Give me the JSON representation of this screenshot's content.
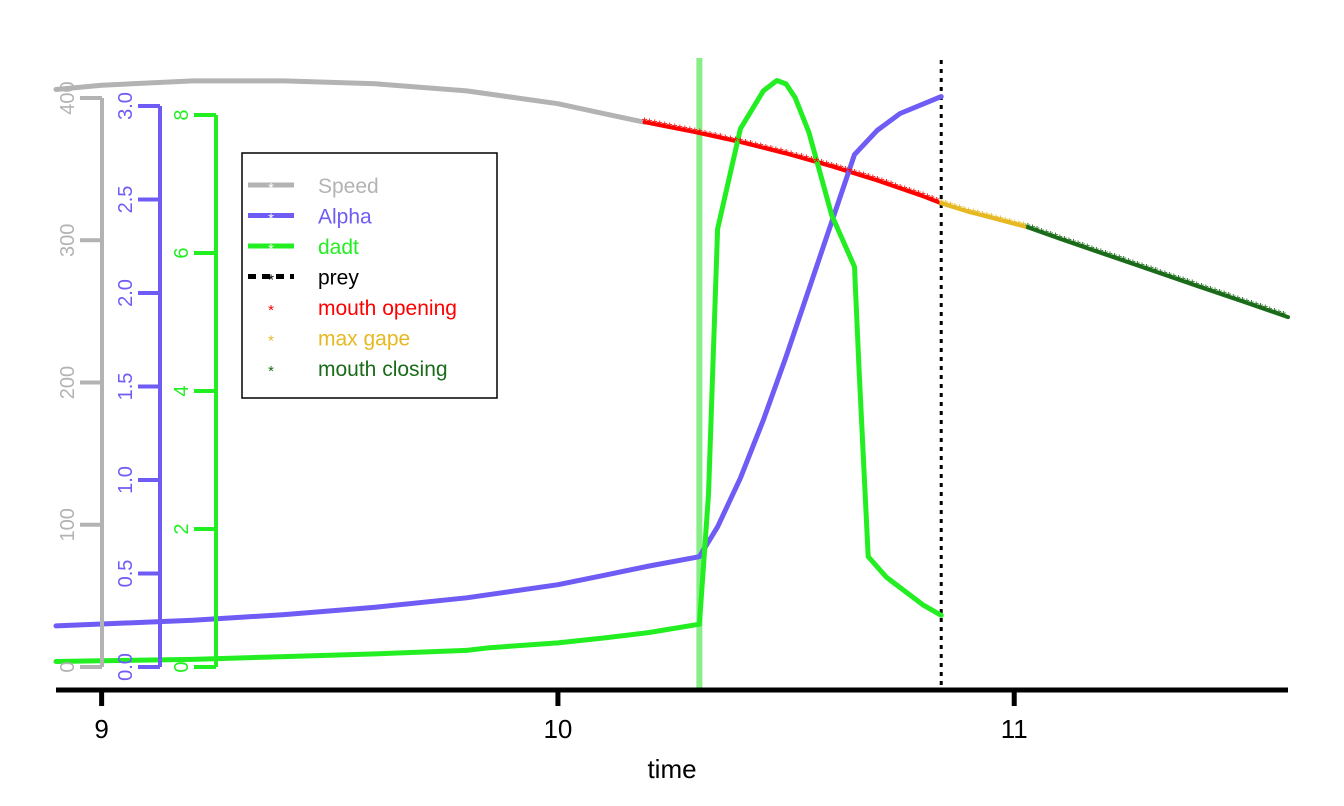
{
  "chart_data": {
    "type": "line",
    "title": "",
    "xlabel": "time",
    "xlim": [
      8.9,
      11.6
    ],
    "x_ticks": [
      "9",
      "10",
      "11"
    ],
    "axes": [
      {
        "name": "speed-axis",
        "color": "#b3b3b3",
        "ylim": [
          0,
          400
        ],
        "ticks": [
          "0",
          "100",
          "200",
          "300",
          "400"
        ]
      },
      {
        "name": "alpha-axis",
        "color": "#6e5cf5",
        "ylim": [
          0,
          3.0
        ],
        "ticks": [
          "0.0",
          "0.5",
          "1.0",
          "1.5",
          "2.0",
          "2.5",
          "3.0"
        ]
      },
      {
        "name": "dadt-axis",
        "color": "#22ee22",
        "ylim": [
          0,
          8
        ],
        "ticks": [
          "0",
          "2",
          "4",
          "6",
          "8"
        ]
      }
    ],
    "legend": {
      "position": "top-left",
      "entries": [
        {
          "label": "Speed",
          "color": "#b3b3b3",
          "style": "line"
        },
        {
          "label": "Alpha",
          "color": "#6e5cf5",
          "style": "line"
        },
        {
          "label": "dadt",
          "color": "#22ee22",
          "style": "line"
        },
        {
          "label": "prey",
          "color": "#000000",
          "style": "dashed"
        },
        {
          "label": "mouth opening",
          "color": "#ff0000",
          "style": "star"
        },
        {
          "label": "max gape",
          "color": "#e6b822",
          "style": "star"
        },
        {
          "label": "mouth closing",
          "color": "#1a6b1a",
          "style": "star"
        }
      ]
    },
    "series": [
      {
        "key": "speed",
        "axis": 0,
        "color": "#b3b3b3",
        "x": [
          8.9,
          9.0,
          9.2,
          9.4,
          9.6,
          9.8,
          10.0,
          10.1,
          10.19
        ],
        "y": [
          406,
          409,
          412,
          412,
          410,
          405,
          396,
          389,
          383
        ]
      },
      {
        "key": "opening",
        "axis": 0,
        "color": "#ff0000",
        "marker": "star",
        "x": [
          10.19,
          10.3,
          10.4,
          10.5,
          10.6,
          10.7,
          10.8,
          10.84
        ],
        "y": [
          383,
          376,
          369,
          361,
          352,
          342,
          331,
          326
        ]
      },
      {
        "key": "gape",
        "axis": 0,
        "color": "#e6b822",
        "marker": "star",
        "x": [
          10.84,
          10.9,
          10.96,
          11.03
        ],
        "y": [
          326,
          320,
          315,
          309
        ]
      },
      {
        "key": "closing",
        "axis": 0,
        "color": "#1a6b1a",
        "marker": "star",
        "x": [
          11.03,
          11.1,
          11.2,
          11.3,
          11.4,
          11.5,
          11.6
        ],
        "y": [
          309,
          301,
          290,
          279,
          268,
          257,
          246
        ]
      },
      {
        "key": "alpha",
        "axis": 1,
        "color": "#6e5cf5",
        "x": [
          8.9,
          9.0,
          9.2,
          9.4,
          9.6,
          9.8,
          10.0,
          10.1,
          10.2,
          10.31,
          10.35,
          10.4,
          10.45,
          10.5,
          10.55,
          10.6,
          10.65,
          10.7,
          10.75,
          10.84
        ],
        "y": [
          0.22,
          0.23,
          0.25,
          0.28,
          0.32,
          0.37,
          0.44,
          0.49,
          0.54,
          0.59,
          0.75,
          1.01,
          1.32,
          1.66,
          2.02,
          2.38,
          2.74,
          2.87,
          2.96,
          3.05
        ]
      },
      {
        "key": "dadt",
        "axis": 2,
        "color": "#22ee22",
        "x": [
          8.9,
          9.0,
          9.2,
          9.4,
          9.6,
          9.8,
          9.85,
          10.0,
          10.1,
          10.2,
          10.31,
          10.33,
          10.35,
          10.4,
          10.45,
          10.48,
          10.5,
          10.52,
          10.55,
          10.6,
          10.65,
          10.66,
          10.68,
          10.72,
          10.8,
          10.84
        ],
        "y": [
          0.08,
          0.09,
          0.11,
          0.15,
          0.19,
          0.24,
          0.28,
          0.35,
          0.42,
          0.5,
          0.62,
          2.5,
          6.35,
          7.8,
          8.35,
          8.5,
          8.45,
          8.25,
          7.75,
          6.55,
          5.8,
          4.3,
          1.6,
          1.3,
          0.9,
          0.75
        ]
      }
    ],
    "vlines": [
      {
        "key": "strike",
        "x": 10.31,
        "color": "#88ee88",
        "style": "solid"
      },
      {
        "key": "prey",
        "x": 10.84,
        "color": "#000000",
        "style": "dotted"
      }
    ]
  }
}
